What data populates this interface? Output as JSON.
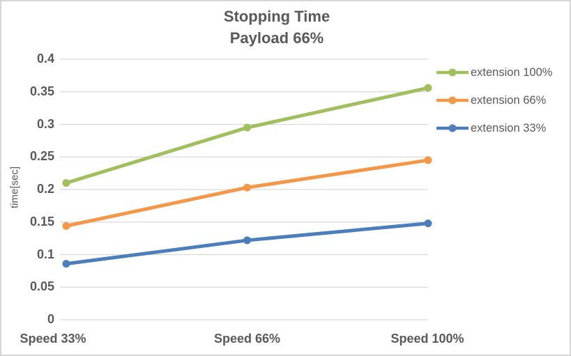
{
  "chart": {
    "title": "Stopping Time",
    "subtitle": "Payload 66%",
    "ylabel": "time[sec]"
  },
  "chart_data": {
    "type": "line",
    "title": "Stopping Time",
    "subtitle": "Payload 66%",
    "xlabel": "",
    "ylabel": "time[sec]",
    "categories": [
      "Speed 33%",
      "Speed 66%",
      "Speed 100%"
    ],
    "series": [
      {
        "name": "extension 100%",
        "values": [
          0.21,
          0.295,
          0.356
        ],
        "color": "#A1BF5E"
      },
      {
        "name": "extension 66%",
        "values": [
          0.144,
          0.203,
          0.245
        ],
        "color": "#F39748"
      },
      {
        "name": "extension 33%",
        "values": [
          0.086,
          0.122,
          0.148
        ],
        "color": "#4C7EBB"
      }
    ],
    "ylim": [
      0,
      0.4
    ],
    "ytick_step": 0.05,
    "ytick_labels": [
      "0",
      "0.05",
      "0.1",
      "0.15",
      "0.2",
      "0.25",
      "0.3",
      "0.35",
      "0.4"
    ],
    "marker": "circle",
    "grid": true,
    "legend_position": "right",
    "colors": {
      "text": "#595959",
      "gridline": "#d9d9d9"
    }
  }
}
